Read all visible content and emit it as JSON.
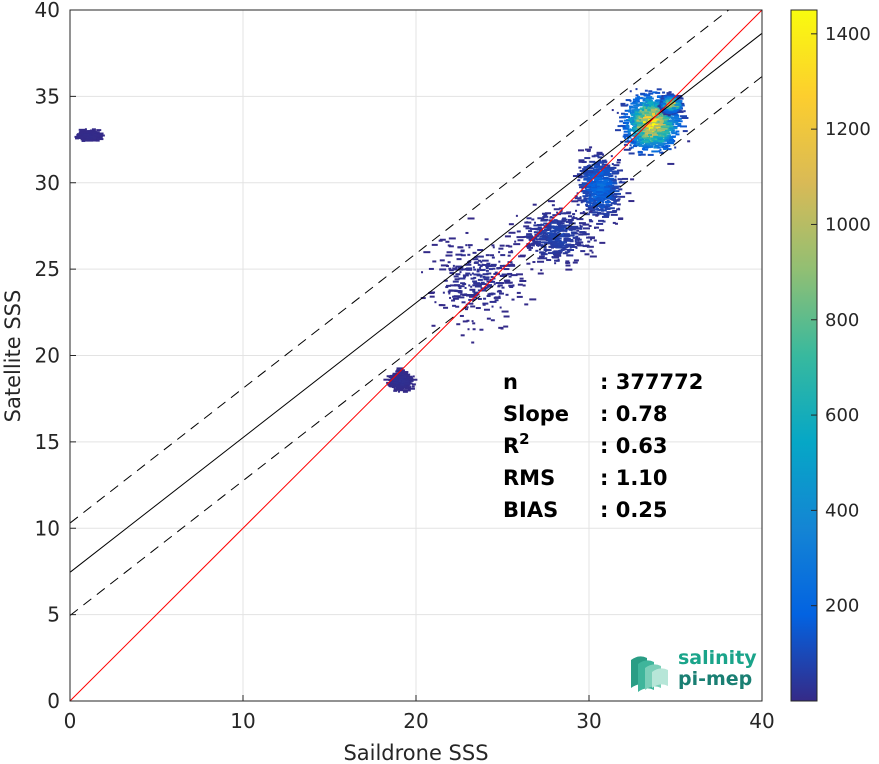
{
  "chart_data": {
    "type": "heatmap",
    "xlabel": "Saildrone SSS",
    "ylabel": "Satellite SSS",
    "xlim": [
      0,
      40
    ],
    "ylim": [
      0,
      40
    ],
    "xticks": [
      "0",
      "10",
      "20",
      "30",
      "40"
    ],
    "yticks": [
      "0",
      "5",
      "10",
      "15",
      "20",
      "25",
      "30",
      "35",
      "40"
    ],
    "grid": true,
    "colorbar": {
      "colormap": "parula",
      "range": [
        0,
        1450
      ],
      "ticks": [
        "200",
        "400",
        "600",
        "800",
        "1000",
        "1200",
        "1400"
      ]
    },
    "lines": {
      "identity": {
        "slope": 1,
        "intercept": 0,
        "color": "#ff0000"
      },
      "fit": {
        "slope": 0.78,
        "intercept": 7.45,
        "color": "#000000"
      },
      "fit_upper": {
        "slope": 0.78,
        "intercept": 10.3,
        "style": "dashed"
      },
      "fit_lower": {
        "slope": 0.78,
        "intercept": 4.95,
        "style": "dashed"
      }
    },
    "density_clusters": [
      {
        "x": 33.5,
        "y": 33.5,
        "sx": 1.3,
        "sy": 1.4,
        "peak": 1450
      },
      {
        "x": 34.6,
        "y": 34.6,
        "sx": 0.4,
        "sy": 0.4,
        "peak": 1300
      },
      {
        "x": 30.5,
        "y": 29.8,
        "sx": 1.1,
        "sy": 1.6,
        "peak": 260
      },
      {
        "x": 28.0,
        "y": 27.0,
        "sx": 1.8,
        "sy": 1.4,
        "peak": 90
      },
      {
        "x": 23.5,
        "y": 24.5,
        "sx": 2.6,
        "sy": 2.3,
        "peak": 30
      },
      {
        "x": 19.0,
        "y": 18.6,
        "sx": 0.6,
        "sy": 0.5,
        "peak": 25
      },
      {
        "x": 1.0,
        "y": 32.8,
        "sx": 0.7,
        "sy": 0.3,
        "peak": 8
      }
    ],
    "annotations": [
      {
        "label": "n",
        "value": ": 377772"
      },
      {
        "label": "Slope",
        "value": ": 0.78"
      },
      {
        "label": "R",
        "sup": "2",
        "value": ": 0.63"
      },
      {
        "label": "RMS",
        "value": ": 1.10"
      },
      {
        "label": "BIAS",
        "value": ": 0.25"
      }
    ]
  },
  "logo": {
    "line1": "salinity",
    "line2": "pi-mep",
    "color": "#1aa48a"
  }
}
